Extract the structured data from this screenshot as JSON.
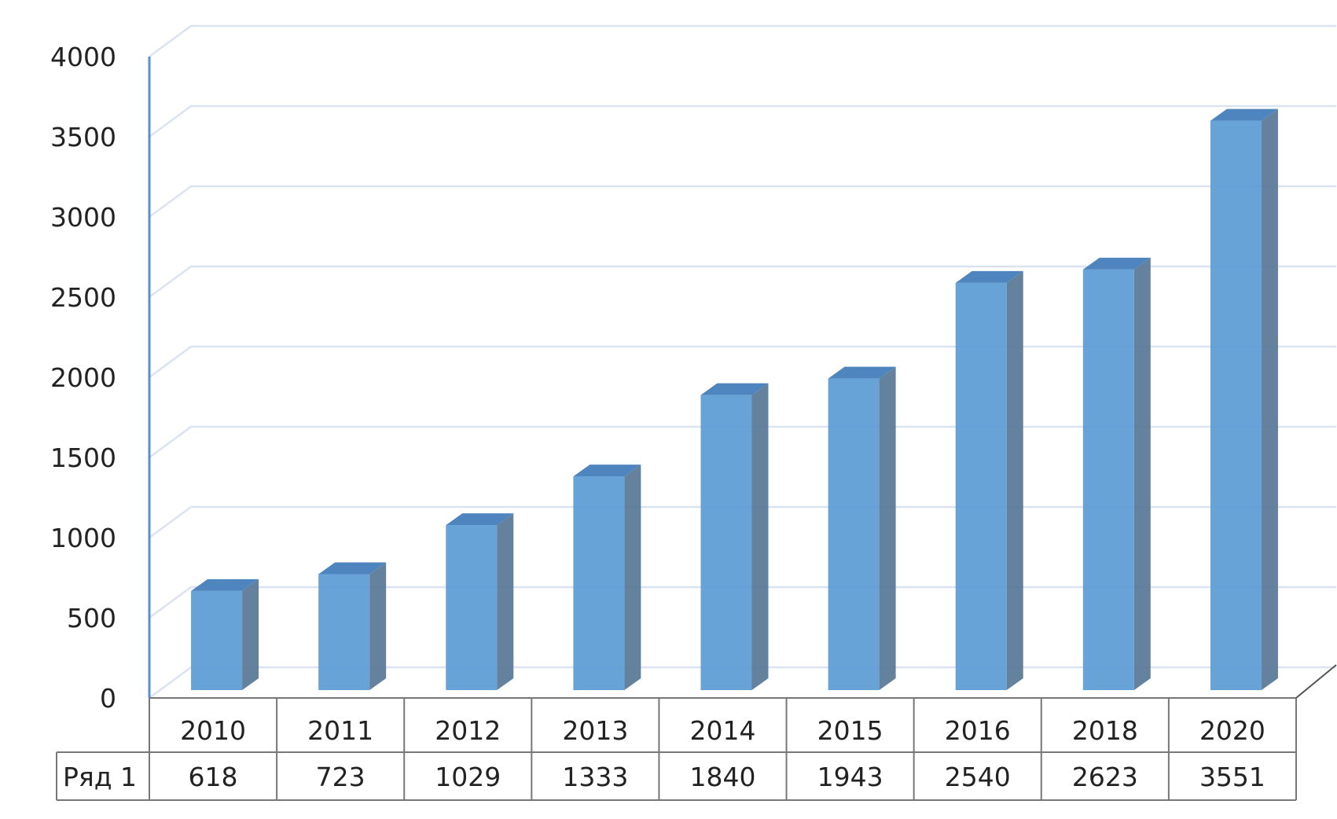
{
  "chart_data": {
    "type": "bar",
    "categories": [
      "2010",
      "2011",
      "2012",
      "2013",
      "2014",
      "2015",
      "2016",
      "2018",
      "2020"
    ],
    "series": [
      {
        "name": "Ряд 1",
        "values": [
          618,
          723,
          1029,
          1333,
          1840,
          1943,
          2540,
          2623,
          3551
        ]
      }
    ],
    "ylim": [
      0,
      4000
    ],
    "yticks": [
      0,
      500,
      1000,
      1500,
      2000,
      2500,
      3000,
      3500,
      4000
    ],
    "grid": true,
    "data_table": true,
    "bar_color": "#5b9bd5",
    "grid_color": "#d9e3f2"
  }
}
